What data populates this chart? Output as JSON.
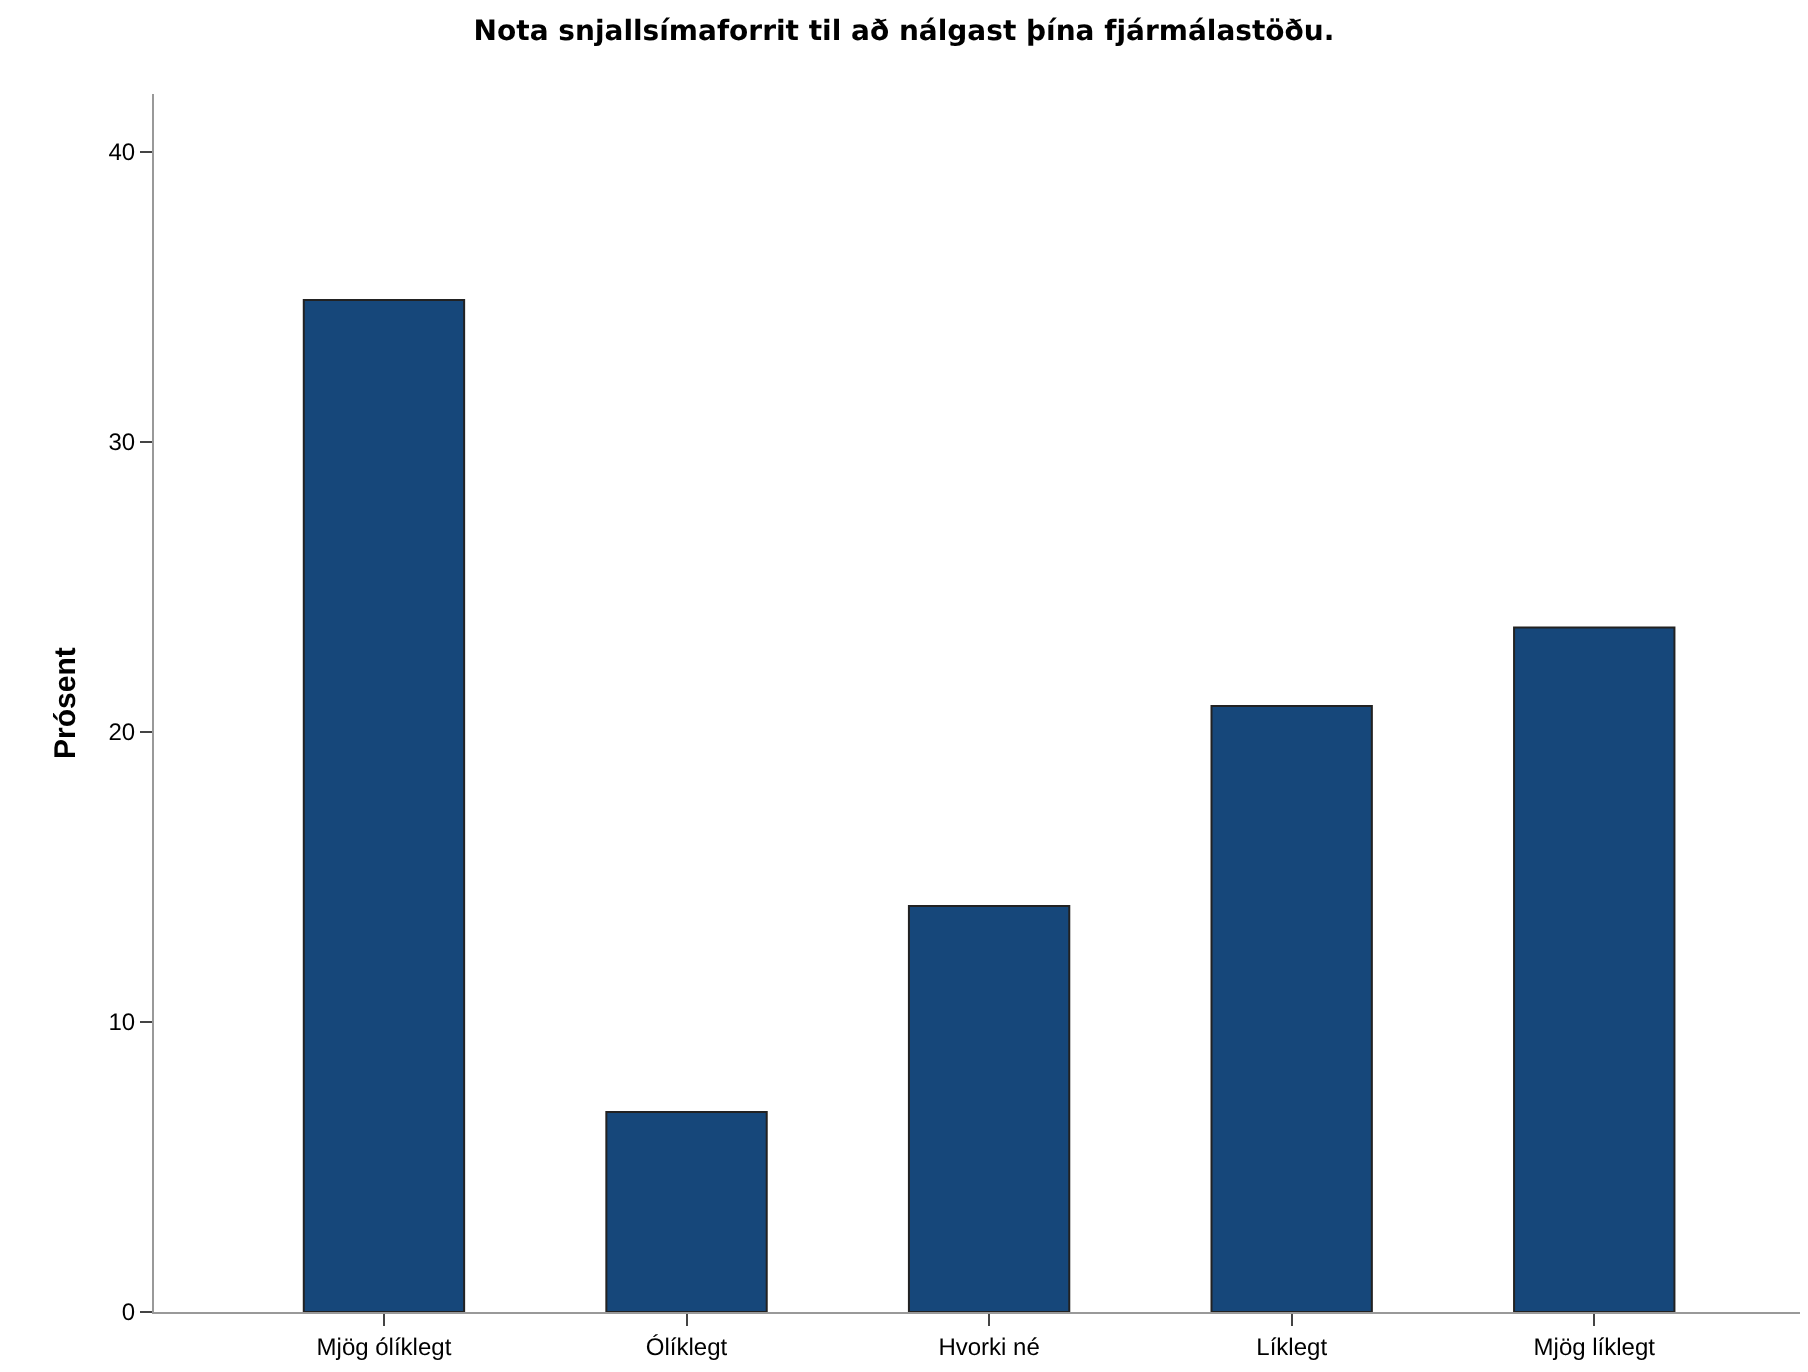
{
  "chart_data": {
    "type": "bar",
    "title": "Nota snjallsímaforrit til að nálgast þína fjármálastöðu.",
    "ylabel": "Prósent",
    "categories": [
      "Mjög ólíklegt",
      "Ólíklegt",
      "Hvorki né",
      "Líklegt",
      "Mjög líklegt"
    ],
    "values": [
      34.9,
      6.9,
      14.0,
      20.9,
      23.6
    ],
    "color": "#16477a",
    "ylim": [
      0,
      42
    ],
    "yticks": [
      0,
      10,
      20,
      30,
      40
    ]
  }
}
